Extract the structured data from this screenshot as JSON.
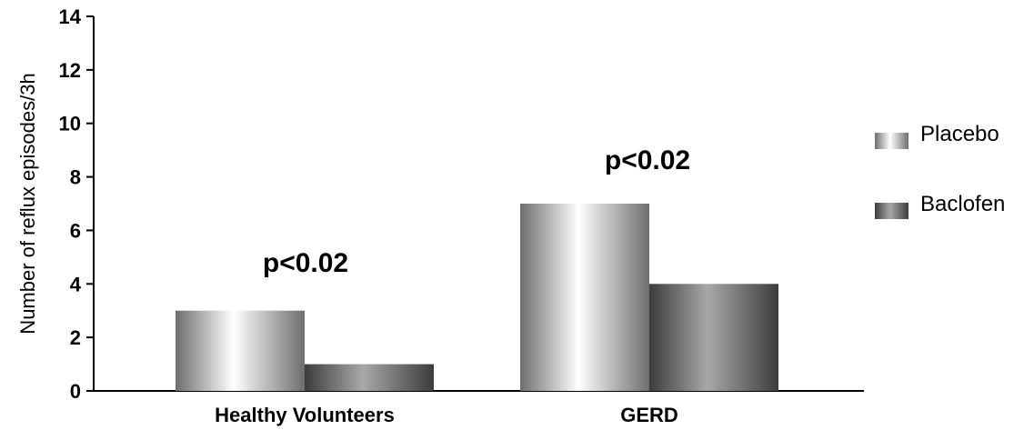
{
  "chart_data": {
    "type": "bar",
    "categories": [
      "Healthy Volunteers",
      "GERD"
    ],
    "series": [
      {
        "name": "Placebo",
        "values": [
          3,
          7
        ],
        "color": "#9a9a9a"
      },
      {
        "name": "Baclofen",
        "values": [
          1,
          4
        ],
        "color": "#5a5a5a"
      }
    ],
    "ylabel": "Number of reflux episodes/3h",
    "xlabel": "",
    "ylim": [
      0,
      14
    ],
    "yticks": [
      0,
      2,
      4,
      6,
      8,
      10,
      12,
      14
    ],
    "annotations": [
      "p<0.02",
      "p<0.02"
    ],
    "legend_position": "top-right",
    "grid": false
  }
}
